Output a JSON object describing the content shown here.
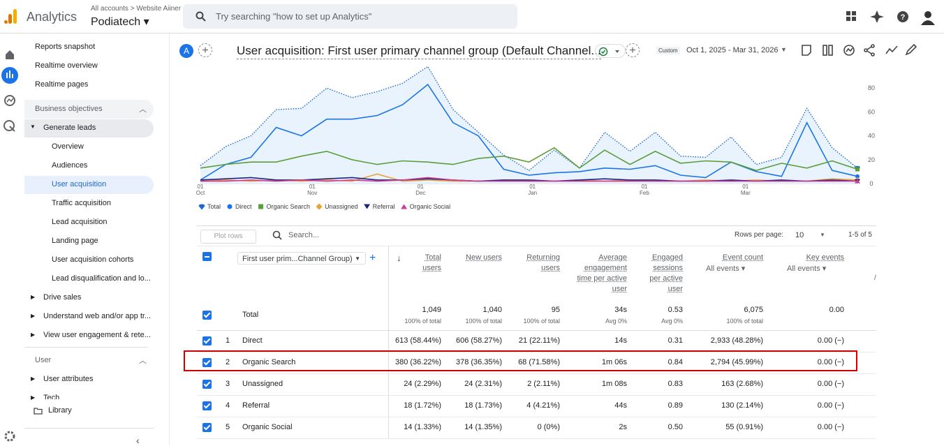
{
  "header": {
    "product": "Analytics",
    "breadcrumb": [
      "All accounts",
      "Website Aiiner"
    ],
    "property": "Podiatech",
    "search_placeholder": "Try searching \"how to set up Analytics\""
  },
  "nav": {
    "top": [
      "Reports snapshot",
      "Realtime overview",
      "Realtime pages"
    ],
    "business_objectives": "Business objectives",
    "generate_leads": "Generate leads",
    "generate_leads_items": [
      "Overview",
      "Audiences",
      "User acquisition",
      "Traffic acquisition",
      "Lead acquisition",
      "Landing page",
      "User acquisition cohorts",
      "Lead disqualification and lo..."
    ],
    "collections": [
      "Drive sales",
      "Understand web and/or app tr...",
      "View user engagement & rete..."
    ],
    "user": "User",
    "user_items": [
      "User attributes",
      "Tech"
    ],
    "library": "Library"
  },
  "report": {
    "avatar": "A",
    "title": "User acquisition: First user primary channel group (Default Channel...",
    "date_badge": "Custom",
    "date_range": "Oct 1, 2025 - Mar 31, 2026"
  },
  "chart_data": {
    "type": "line",
    "x": [
      0,
      7,
      14,
      21,
      28,
      35,
      42,
      49,
      56,
      63,
      70,
      77,
      84,
      91,
      98,
      105,
      112,
      119,
      126,
      133,
      140,
      147,
      154,
      161,
      168,
      175,
      182
    ],
    "xlim": [
      0,
      182
    ],
    "xticks": [
      {
        "value": 0,
        "label": "01 Oct"
      },
      {
        "value": 31,
        "label": "01 Nov"
      },
      {
        "value": 61,
        "label": "01 Dec"
      },
      {
        "value": 92,
        "label": "01 Jan"
      },
      {
        "value": 123,
        "label": "01 Feb"
      },
      {
        "value": 151,
        "label": "01 Mar"
      }
    ],
    "ylim": [
      0,
      100
    ],
    "yticks": [
      0,
      20,
      40,
      60,
      80
    ],
    "grid": false,
    "series": [
      {
        "name": "Total",
        "color": "#1967d2",
        "marker": "drop",
        "values": [
          15,
          31,
          40,
          62,
          63,
          80,
          72,
          77,
          84,
          98,
          62,
          43,
          24,
          11,
          28,
          13,
          43,
          27,
          43,
          23,
          22,
          39,
          16,
          22,
          63,
          30,
          13
        ]
      },
      {
        "name": "Direct",
        "color": "#1a73e8",
        "marker": "circle",
        "values": [
          3,
          16,
          22,
          47,
          40,
          54,
          54,
          57,
          66,
          83,
          51,
          40,
          12,
          7,
          9,
          10,
          13,
          12,
          15,
          7,
          5,
          18,
          10,
          6,
          51,
          11,
          6
        ]
      },
      {
        "name": "Organic Search",
        "color": "#5a9e3a",
        "marker": "square",
        "values": [
          13,
          16,
          18,
          18,
          23,
          27,
          20,
          16,
          19,
          18,
          16,
          21,
          23,
          18,
          30,
          13,
          28,
          16,
          27,
          17,
          19,
          18,
          11,
          17,
          13,
          19,
          12
        ]
      },
      {
        "name": "Unassigned",
        "color": "#e8a23a",
        "marker": "diamond",
        "values": [
          2,
          3,
          2,
          3,
          2,
          3,
          2,
          8,
          2,
          3,
          2,
          2,
          3,
          2,
          2,
          3,
          2,
          3,
          2,
          2,
          3,
          2,
          3,
          2,
          2,
          4,
          3
        ]
      },
      {
        "name": "Referral",
        "color": "#1a237e",
        "marker": "triangle-down",
        "values": [
          3,
          4,
          5,
          3,
          3,
          4,
          5,
          3,
          3,
          4,
          3,
          2,
          3,
          3,
          2,
          3,
          4,
          3,
          3,
          2,
          2,
          3,
          2,
          3,
          2,
          3,
          2
        ]
      },
      {
        "name": "Organic Social",
        "color": "#d13c9b",
        "marker": "triangle-up",
        "values": [
          2,
          2,
          3,
          2,
          3,
          2,
          3,
          2,
          3,
          5,
          3,
          2,
          2,
          2,
          2,
          2,
          2,
          2,
          2,
          2,
          2,
          2,
          2,
          2,
          2,
          2,
          2
        ]
      }
    ]
  },
  "table": {
    "plot_rows": "Plot rows",
    "search": "Search...",
    "rows_per_page_label": "Rows per page:",
    "rows_per_page": "10",
    "pagination": "1-5 of 5",
    "dimension": "First user prim...Channel Group)",
    "columns": [
      {
        "label": "Total users"
      },
      {
        "label": "New users"
      },
      {
        "label": "Returning users"
      },
      {
        "label": "Average engagement time per active user"
      },
      {
        "label": "Engaged sessions per active user"
      },
      {
        "label": "Event count",
        "sub": "All events"
      },
      {
        "label": "Key events",
        "sub": "All events"
      }
    ],
    "total_label": "Total",
    "totals": [
      [
        "1,049",
        "100% of total"
      ],
      [
        "1,040",
        "100% of total"
      ],
      [
        "95",
        "100% of total"
      ],
      [
        "34s",
        "Avg 0%"
      ],
      [
        "0.53",
        "Avg 0%"
      ],
      [
        "6,075",
        "100% of total"
      ],
      [
        "0.00"
      ]
    ],
    "rows": [
      [
        "1",
        "Direct",
        "613 (58.44%)",
        "606 (58.27%)",
        "21 (22.11%)",
        "14s",
        "0.31",
        "2,933 (48.28%)",
        "0.00 (−)"
      ],
      [
        "2",
        "Organic Search",
        "380 (36.22%)",
        "378 (36.35%)",
        "68 (71.58%)",
        "1m 06s",
        "0.84",
        "2,794 (45.99%)",
        "0.00 (−)"
      ],
      [
        "3",
        "Unassigned",
        "24 (2.29%)",
        "24 (2.31%)",
        "2 (2.11%)",
        "1m 08s",
        "0.83",
        "163 (2.68%)",
        "0.00 (−)"
      ],
      [
        "4",
        "Referral",
        "18 (1.72%)",
        "18 (1.73%)",
        "4 (4.21%)",
        "44s",
        "0.89",
        "130 (2.14%)",
        "0.00 (−)"
      ],
      [
        "5",
        "Organic Social",
        "14 (1.33%)",
        "14 (1.35%)",
        "0 (0%)",
        "2s",
        "0.50",
        "55 (0.91%)",
        "0.00 (−)"
      ]
    ]
  }
}
